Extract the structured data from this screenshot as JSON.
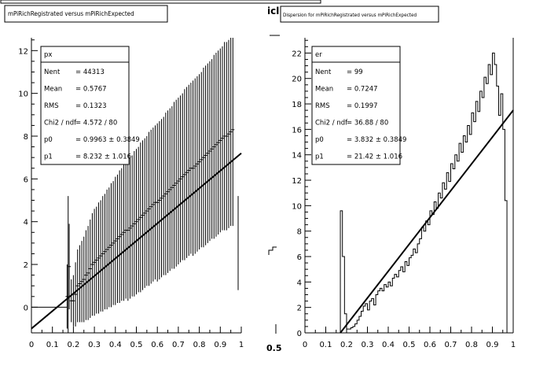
{
  "chart_data": [
    {
      "type": "scatter",
      "title": "mPiRichRegistrated versus mPiRichExpected",
      "xlim": [
        0,
        1
      ],
      "ylim": [
        -1.2,
        12.6
      ],
      "x_ticks": [
        "0",
        "0.1",
        "0.2",
        "0.3",
        "0.4",
        "0.5",
        "0.6",
        "0.7",
        "0.8",
        "0.9",
        "1"
      ],
      "y_ticks": [
        "0",
        "2",
        "4",
        "6",
        "8",
        "10",
        "12"
      ],
      "stats": {
        "name": "px",
        "rows": [
          {
            "label": "Nent",
            "value": "44313"
          },
          {
            "label": "Mean",
            "value": "0.5767"
          },
          {
            "label": "RMS",
            "value": "0.1323"
          },
          {
            "label": "Chi2 / ndf",
            "value": "4.572 / 80"
          },
          {
            "label": "p0",
            "value": "0.9963 ± 0.3849"
          },
          {
            "label": "p1",
            "value": "8.232 ± 1.016"
          }
        ]
      },
      "fit": {
        "x": [
          0,
          1
        ],
        "y": [
          -1.0,
          7.2
        ]
      },
      "points": {
        "x": [
          0.17,
          0.18,
          0.19,
          0.2,
          0.21,
          0.22,
          0.23,
          0.24,
          0.25,
          0.26,
          0.27,
          0.28,
          0.29,
          0.3,
          0.31,
          0.32,
          0.33,
          0.34,
          0.35,
          0.36,
          0.37,
          0.38,
          0.39,
          0.4,
          0.41,
          0.42,
          0.43,
          0.44,
          0.45,
          0.46,
          0.47,
          0.48,
          0.49,
          0.5,
          0.51,
          0.52,
          0.53,
          0.54,
          0.55,
          0.56,
          0.57,
          0.58,
          0.59,
          0.6,
          0.61,
          0.62,
          0.63,
          0.64,
          0.65,
          0.66,
          0.67,
          0.68,
          0.69,
          0.7,
          0.71,
          0.72,
          0.73,
          0.74,
          0.75,
          0.76,
          0.77,
          0.78,
          0.79,
          0.8,
          0.81,
          0.82,
          0.83,
          0.84,
          0.85,
          0.86,
          0.87,
          0.88,
          0.89,
          0.9,
          0.91,
          0.92,
          0.93,
          0.94,
          0.95,
          0.96
        ],
        "y": [
          0.5,
          1.9,
          0.3,
          0.3,
          0.6,
          1.0,
          1.1,
          1.2,
          1.3,
          1.5,
          1.6,
          1.8,
          2.0,
          2.1,
          2.2,
          2.3,
          2.4,
          2.5,
          2.6,
          2.7,
          2.8,
          2.9,
          3.0,
          3.1,
          3.2,
          3.3,
          3.4,
          3.5,
          3.6,
          3.6,
          3.7,
          3.8,
          3.9,
          4.0,
          4.1,
          4.2,
          4.3,
          4.4,
          4.5,
          4.6,
          4.7,
          4.8,
          4.9,
          4.9,
          5.0,
          5.1,
          5.2,
          5.3,
          5.4,
          5.5,
          5.6,
          5.7,
          5.8,
          5.9,
          6.0,
          6.1,
          6.2,
          6.3,
          6.4,
          6.5,
          6.5,
          6.6,
          6.7,
          6.8,
          6.9,
          7.0,
          7.1,
          7.2,
          7.3,
          7.4,
          7.5,
          7.6,
          7.7,
          7.8,
          7.9,
          8.0,
          8.0,
          8.1,
          8.2,
          8.3
        ],
        "err": [
          1.5,
          2.0,
          1.0,
          1.2,
          1.5,
          1.7,
          1.8,
          1.9,
          2.0,
          2.1,
          2.2,
          2.3,
          2.4,
          2.5,
          2.5,
          2.6,
          2.6,
          2.7,
          2.7,
          2.8,
          2.8,
          2.9,
          2.9,
          3.0,
          3.0,
          3.1,
          3.1,
          3.2,
          3.2,
          3.3,
          3.3,
          3.3,
          3.4,
          3.4,
          3.4,
          3.5,
          3.5,
          3.5,
          3.5,
          3.6,
          3.6,
          3.6,
          3.6,
          3.7,
          3.7,
          3.7,
          3.7,
          3.8,
          3.8,
          3.8,
          3.8,
          3.9,
          3.9,
          3.9,
          3.9,
          3.9,
          4.0,
          4.0,
          4.0,
          4.0,
          4.1,
          4.1,
          4.1,
          4.1,
          4.1,
          4.2,
          4.2,
          4.2,
          4.2,
          4.2,
          4.3,
          4.3,
          4.3,
          4.3,
          4.3,
          4.4,
          4.4,
          4.4,
          4.4,
          4.5
        ]
      },
      "extra_points": [
        {
          "x": 0.0,
          "y": 0.0,
          "xerr": 0.17,
          "yerr": 0.0
        },
        {
          "x": 0.175,
          "y": 0.8,
          "xerr": 0.0,
          "yerr": 4.4
        },
        {
          "x": 0.985,
          "y": 3.0,
          "xerr": 0.0,
          "yerr": 2.2
        }
      ]
    },
    {
      "type": "histogram",
      "title": "Dispersion for mPiRichRegistrated versus mPiRichExpected",
      "xlim": [
        0,
        1
      ],
      "ylim": [
        0,
        23.2
      ],
      "x_ticks": [
        "0",
        "0.1",
        "0.2",
        "0.3",
        "0.4",
        "0.5",
        "0.6",
        "0.7",
        "0.8",
        "0.9",
        "1"
      ],
      "y_ticks": [
        "0",
        "2",
        "4",
        "6",
        "8",
        "10",
        "12",
        "14",
        "16",
        "18",
        "20",
        "22"
      ],
      "stats": {
        "name": "er",
        "rows": [
          {
            "label": "Nent",
            "value": "99"
          },
          {
            "label": "Mean",
            "value": "0.7247"
          },
          {
            "label": "RMS",
            "value": "0.1997"
          },
          {
            "label": "Chi2 / ndf",
            "value": "36.88 / 80"
          },
          {
            "label": "p0",
            "value": "3.832 ± 0.3849"
          },
          {
            "label": "p1",
            "value": "21.42 ± 1.016"
          }
        ]
      },
      "fit": {
        "x": [
          0.17,
          1.0
        ],
        "y": [
          0.0,
          17.5
        ]
      },
      "bins": {
        "x_start": 0.17,
        "width": 0.01,
        "values": [
          9.6,
          6.0,
          1.5,
          0.3,
          0.3,
          0.4,
          0.5,
          0.7,
          1.0,
          1.3,
          1.7,
          2.1,
          2.3,
          1.8,
          2.5,
          2.7,
          2.2,
          3.0,
          3.3,
          3.5,
          3.3,
          3.8,
          3.6,
          4.0,
          3.7,
          4.3,
          4.6,
          4.4,
          4.9,
          5.2,
          4.8,
          5.6,
          5.3,
          5.9,
          6.1,
          6.6,
          6.3,
          7.0,
          7.4,
          8.3,
          8.0,
          8.8,
          8.5,
          9.6,
          9.3,
          10.3,
          9.8,
          11.0,
          10.6,
          11.8,
          11.3,
          12.6,
          11.9,
          13.3,
          12.9,
          14.0,
          13.5,
          14.9,
          14.2,
          15.5,
          15.0,
          16.3,
          15.6,
          17.3,
          16.6,
          18.2,
          17.4,
          19.0,
          18.5,
          20.1,
          19.6,
          21.1,
          20.3,
          22.0,
          21.1,
          19.4,
          17.1,
          18.8,
          16.0,
          10.4,
          0.0,
          0.0,
          0.0
        ]
      }
    }
  ],
  "artifacts": {
    "frag_top": "icl",
    "frag_bottom": "0.5"
  }
}
